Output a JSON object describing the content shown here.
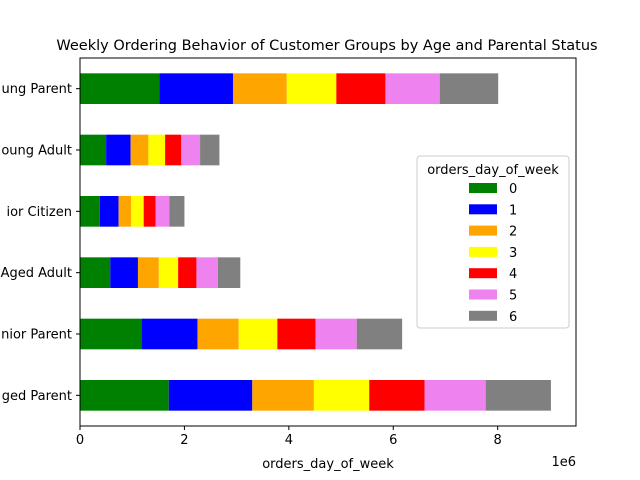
{
  "chart_data": {
    "type": "bar",
    "orientation": "horizontal",
    "stacked": true,
    "title": "Weekly Ordering Behavior of Customer Groups by Age and Parental Status",
    "xlabel": "orders_day_of_week",
    "ylabel": "",
    "x_scale_label": "1e6",
    "xlim": [
      0,
      9.5
    ],
    "x_ticks": [
      0,
      2,
      4,
      6,
      8
    ],
    "categories": [
      "Middle-Aged Parent",
      "Senior Parent",
      "Middle-Aged Adult",
      "Senior Citizen",
      "Young Adult",
      "Young Parent"
    ],
    "category_labels_visible": [
      "ged Parent",
      "nior Parent",
      "Aged Adult",
      "ior Citizen",
      "oung Adult",
      "ung Parent"
    ],
    "legend_title": "orders_day_of_week",
    "legend_position": "center-right",
    "grid": false,
    "series": [
      {
        "name": "0",
        "color": "#008000",
        "values": [
          1.7,
          1.18,
          0.58,
          0.38,
          0.5,
          1.52
        ]
      },
      {
        "name": "1",
        "color": "#0000ff",
        "values": [
          1.6,
          1.07,
          0.53,
          0.36,
          0.47,
          1.41
        ]
      },
      {
        "name": "2",
        "color": "#ffa500",
        "values": [
          1.18,
          0.79,
          0.4,
          0.24,
          0.34,
          1.03
        ]
      },
      {
        "name": "3",
        "color": "#ffff00",
        "values": [
          1.06,
          0.74,
          0.37,
          0.24,
          0.32,
          0.95
        ]
      },
      {
        "name": "4",
        "color": "#ff0000",
        "values": [
          1.06,
          0.73,
          0.35,
          0.23,
          0.31,
          0.94
        ]
      },
      {
        "name": "5",
        "color": "#ee82ee",
        "values": [
          1.17,
          0.79,
          0.41,
          0.26,
          0.36,
          1.04
        ]
      },
      {
        "name": "6",
        "color": "#808080",
        "values": [
          1.25,
          0.87,
          0.43,
          0.29,
          0.37,
          1.12
        ]
      }
    ]
  }
}
